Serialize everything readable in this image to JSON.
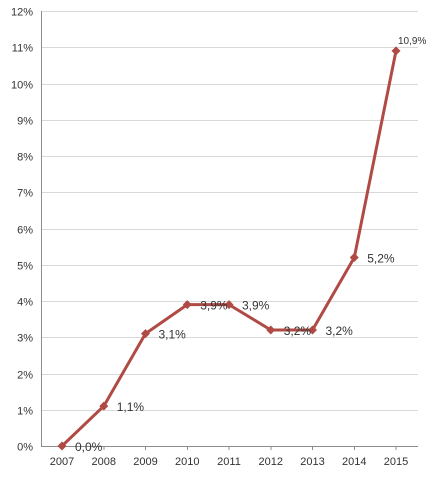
{
  "chart_data": {
    "type": "line",
    "title": "",
    "xlabel": "",
    "ylabel": "",
    "ylim": [
      0,
      12
    ],
    "y_ticks": [
      "0%",
      "1%",
      "2%",
      "3%",
      "4%",
      "5%",
      "6%",
      "7%",
      "8%",
      "9%",
      "10%",
      "11%",
      "12%"
    ],
    "grid": true,
    "legend": "none",
    "categories": [
      "2007",
      "2008",
      "2009",
      "2010",
      "2011",
      "2012",
      "2013",
      "2014",
      "2015"
    ],
    "series": [
      {
        "values": [
          0.0,
          1.1,
          3.1,
          3.9,
          3.9,
          3.2,
          3.2,
          5.2,
          10.9
        ],
        "labels": [
          "0,0%",
          "1,1%",
          "3,1%",
          "3,9%",
          "3,9%",
          "3,2%",
          "3,2%",
          "5,2%",
          "10,9%"
        ],
        "color": "#b04a45"
      }
    ],
    "colors": {
      "line": "#b04a45",
      "marker": "#b04a45",
      "grid": "#d9d9d9",
      "axis": "#8c8c8c",
      "text": "#333333"
    }
  }
}
